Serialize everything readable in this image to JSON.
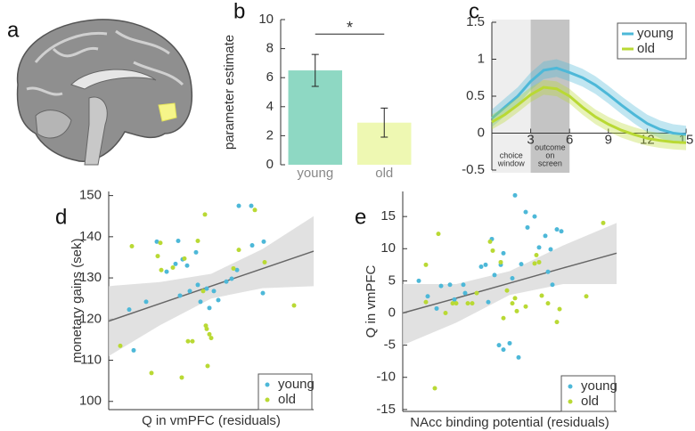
{
  "panel_labels": [
    "a",
    "b",
    "c",
    "d",
    "e"
  ],
  "chart_data": [
    {
      "type": "bar",
      "ylabel": "parameter estimate",
      "categories": [
        "young",
        "old"
      ],
      "values": [
        6.5,
        2.9
      ],
      "errors": [
        1.1,
        1.0
      ],
      "colors": [
        "#8ed8c3",
        "#eef8b2"
      ],
      "ylim": [
        0,
        10
      ],
      "yticks": [
        0,
        2,
        4,
        6,
        8,
        10
      ],
      "annotation": "*",
      "annotation_level": 9.0
    },
    {
      "type": "line",
      "xlim": [
        0,
        15
      ],
      "ylim": [
        -0.5,
        1.5
      ],
      "xticks": [
        3,
        6,
        9,
        12,
        15
      ],
      "yticks": [
        -0.5,
        0,
        0.5,
        1,
        1.5
      ],
      "x": [
        0,
        1,
        2,
        3,
        4,
        5,
        6,
        7,
        8,
        9,
        10,
        11,
        12,
        13,
        14,
        15
      ],
      "regions": [
        {
          "label": [
            "choice",
            "window"
          ],
          "x": [
            0,
            3
          ],
          "color": "#eeeeee"
        },
        {
          "label": [
            "outcome",
            "on",
            "screen"
          ],
          "x": [
            3,
            6
          ],
          "color": "#c4c4c4"
        }
      ],
      "legend": "upper right",
      "series": [
        {
          "name": "young",
          "color": "#4db8d8",
          "values": [
            0.2,
            0.35,
            0.5,
            0.7,
            0.85,
            0.88,
            0.82,
            0.75,
            0.65,
            0.52,
            0.38,
            0.25,
            0.13,
            0.05,
            0.0,
            -0.02
          ],
          "lower": [
            0.08,
            0.23,
            0.38,
            0.58,
            0.73,
            0.76,
            0.7,
            0.63,
            0.53,
            0.4,
            0.26,
            0.13,
            0.01,
            -0.07,
            -0.12,
            -0.14
          ],
          "upper": [
            0.32,
            0.47,
            0.62,
            0.82,
            0.97,
            1.0,
            0.94,
            0.87,
            0.77,
            0.64,
            0.5,
            0.37,
            0.25,
            0.17,
            0.12,
            0.1
          ]
        },
        {
          "name": "old",
          "color": "#b9d934",
          "values": [
            0.15,
            0.25,
            0.38,
            0.52,
            0.62,
            0.6,
            0.5,
            0.35,
            0.22,
            0.12,
            0.04,
            -0.02,
            -0.07,
            -0.1,
            -0.12,
            -0.13
          ],
          "lower": [
            0.05,
            0.15,
            0.28,
            0.42,
            0.52,
            0.5,
            0.4,
            0.25,
            0.12,
            0.02,
            -0.06,
            -0.12,
            -0.17,
            -0.2,
            -0.22,
            -0.23
          ],
          "upper": [
            0.25,
            0.35,
            0.48,
            0.62,
            0.72,
            0.7,
            0.6,
            0.45,
            0.32,
            0.22,
            0.14,
            0.08,
            0.03,
            0.0,
            -0.02,
            -0.03
          ]
        }
      ]
    },
    {
      "type": "scatter",
      "xlabel": "Q in vmPFC (residuals)",
      "ylabel": "monetary gains (sek)",
      "xlim": [
        -23,
        23
      ],
      "ylim": [
        98,
        151
      ],
      "yticks": [
        100,
        110,
        120,
        130,
        140,
        150
      ],
      "legend": "lower right",
      "fit": {
        "x": [
          -23,
          -11.5,
          0,
          11.5,
          23
        ],
        "values": [
          119.5,
          123.75,
          128,
          132.25,
          136.5
        ],
        "lower": [
          111,
          118.5,
          125,
          127.5,
          128
        ],
        "upper": [
          128,
          129,
          131,
          137,
          145
        ]
      },
      "series": [
        {
          "name": "young",
          "color": "#4db8d8",
          "x": [
            -18.4,
            -14.6,
            -12.2,
            -10.0,
            -8.0,
            -7.4,
            -7.0,
            -6.4,
            -5.4,
            -4.8,
            -3.4,
            -3.0,
            -2.4,
            -1.0,
            -0.4,
            0.6,
            1.6,
            3.4,
            4.6,
            5.8,
            6.2,
            9.0,
            9.2,
            11.8,
            11.6,
            -17.4
          ],
          "values": [
            122.3,
            124.2,
            138.8,
            131.5,
            133.4,
            139.0,
            125.7,
            134.5,
            133.0,
            126.8,
            136.2,
            128.3,
            124.2,
            127.4,
            122.7,
            126.8,
            124.6,
            129.1,
            129.8,
            131.9,
            147.5,
            147.5,
            137.9,
            138.8,
            126.3,
            112.4
          ]
        },
        {
          "name": "old",
          "color": "#b9d934",
          "x": [
            -20.4,
            -17.8,
            -13.4,
            -12.0,
            -11.2,
            -8.6,
            -6.6,
            -6.0,
            -5.2,
            -4.2,
            -3.0,
            -1.8,
            -1.4,
            -1.2,
            -1.0,
            -0.8,
            -0.4,
            0.0,
            5.0,
            6.2,
            9.8,
            12.0,
            18.6,
            -11.4
          ],
          "values": [
            113.5,
            137.7,
            106.9,
            135.3,
            131.9,
            132.5,
            105.8,
            134.7,
            114.6,
            114.6,
            139.0,
            126.8,
            145.4,
            118.4,
            117.6,
            108.6,
            116.3,
            115.4,
            132.3,
            136.8,
            146.5,
            133.8,
            123.3,
            138.5
          ]
        }
      ]
    },
    {
      "type": "scatter",
      "xlabel": "NAcc binding potential (residuals)",
      "ylabel": "Q in vmPFC",
      "xlim": [
        -24,
        24
      ],
      "ylim": [
        -15.3,
        18.9
      ],
      "yticks": [
        -15,
        -10,
        -5,
        0,
        5,
        10,
        15
      ],
      "legend": "lower right",
      "fit": {
        "x": [
          -24,
          -12,
          0,
          12,
          24
        ],
        "values": [
          0,
          2.3,
          4.65,
          7.0,
          9.3
        ],
        "lower": [
          -5,
          -1.5,
          2.8,
          4.5,
          4.5
        ],
        "upper": [
          4.5,
          4.5,
          6.5,
          10.5,
          14
        ]
      },
      "series": [
        {
          "name": "young",
          "color": "#4db8d8",
          "x": [
            -20.4,
            -16.4,
            -15.4,
            -13.4,
            -12.4,
            -10.4,
            -10.0,
            -6.4,
            -5.4,
            -4.8,
            -4.0,
            -3.4,
            -2.4,
            -2.0,
            -1.4,
            -1.4,
            0,
            0.6,
            1.2,
            2.0,
            2.6,
            3.6,
            4.0,
            5.6,
            6.6,
            8.0,
            8.6,
            9.2,
            9.6,
            10.6,
            11.6,
            -18.4
          ],
          "values": [
            5.0,
            0.7,
            4.2,
            4.4,
            2.1,
            4.4,
            3.1,
            7.2,
            7.5,
            1.7,
            11.5,
            5.9,
            -5.0,
            7.5,
            9.3,
            -5.7,
            -4.7,
            5.4,
            18.3,
            -6.9,
            7.6,
            15.7,
            13.3,
            15.0,
            10.2,
            12.0,
            6.4,
            9.9,
            4.4,
            13.0,
            12.7,
            2.6
          ]
        },
        {
          "name": "old",
          "color": "#b9d934",
          "x": [
            -18.8,
            -16.0,
            -18.8,
            -16.8,
            -14.4,
            -12.8,
            -12.0,
            -9.4,
            -8.4,
            -7.4,
            -4.4,
            -3.8,
            -2.0,
            -1.4,
            -0.6,
            0.6,
            1.2,
            1.6,
            3.6,
            5.6,
            6.0,
            6.6,
            7.2,
            8.6,
            10.6,
            11.2,
            17.2,
            21.0
          ],
          "values": [
            7.5,
            12.3,
            1.7,
            -11.7,
            0.0,
            1.5,
            1.5,
            1.5,
            1.5,
            3.1,
            11.1,
            9.7,
            7.9,
            -0.8,
            3.5,
            1.5,
            2.3,
            0.3,
            1.0,
            7.7,
            9.0,
            7.9,
            2.7,
            1.5,
            -1.4,
            0.6,
            2.6,
            14.0
          ]
        }
      ]
    }
  ]
}
